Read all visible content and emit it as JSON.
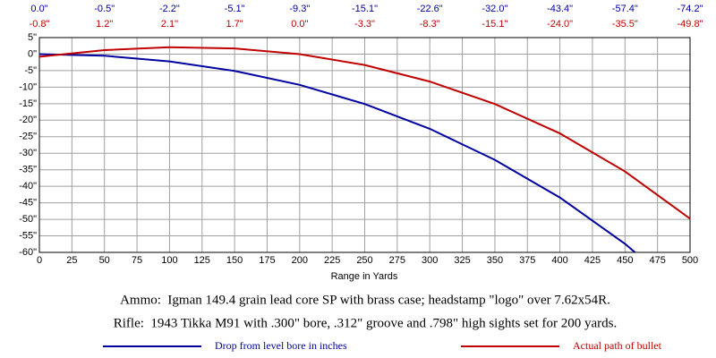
{
  "chart_data": {
    "type": "line",
    "x_label": "Range in Yards",
    "annotations": [
      "Ammo:  Igman 149.4 grain lead core SP with brass case; headstamp \"logo\" over 7.62x54R.",
      "Rifle:  1943 Tikka M91 with .300\" bore, .312\" groove and .798\" high sights set for 200 yards."
    ],
    "x": [
      0,
      50,
      100,
      150,
      200,
      250,
      300,
      350,
      400,
      450,
      500
    ],
    "series": [
      {
        "name": "Drop from level bore in inches",
        "color": "#0000a0",
        "values": [
          0.0,
          -0.5,
          -2.2,
          -5.1,
          -9.3,
          -15.1,
          -22.6,
          -32.0,
          -43.4,
          -57.4,
          -74.2
        ],
        "value_labels": [
          "0.0\"",
          "-0.5\"",
          "-2.2\"",
          "-5.1\"",
          "-9.3\"",
          "-15.1\"",
          "-22.6\"",
          "-32.0\"",
          "-43.4\"",
          "-57.4\"",
          "-74.2\""
        ]
      },
      {
        "name": "Actual path of bullet",
        "color": "#c00000",
        "values": [
          -0.8,
          1.2,
          2.1,
          1.7,
          0.0,
          -3.3,
          -8.3,
          -15.1,
          -24.0,
          -35.5,
          -49.8
        ],
        "value_labels": [
          "-0.8\"",
          "1.2\"",
          "2.1\"",
          "1.7\"",
          "0.0\"",
          "-3.3\"",
          "-8.3\"",
          "-15.1\"",
          "-24.0\"",
          "-35.5\"",
          "-49.8\""
        ]
      }
    ],
    "xlim": [
      0,
      500
    ],
    "xticks": [
      0,
      25,
      50,
      75,
      100,
      125,
      150,
      175,
      200,
      225,
      250,
      275,
      300,
      325,
      350,
      375,
      400,
      425,
      450,
      475,
      500
    ],
    "ylim": [
      -60,
      5
    ],
    "yticks": [
      {
        "value": 5,
        "label": "5\""
      },
      {
        "value": 0,
        "label": "0\""
      },
      {
        "value": -5,
        "label": "-5\""
      },
      {
        "value": -10,
        "label": "-10\""
      },
      {
        "value": -15,
        "label": "-15\""
      },
      {
        "value": -20,
        "label": "-20\""
      },
      {
        "value": -25,
        "label": "-25\""
      },
      {
        "value": -30,
        "label": "-30\""
      },
      {
        "value": -35,
        "label": "-35\""
      },
      {
        "value": -40,
        "label": "-40\""
      },
      {
        "value": -45,
        "label": "-45\""
      },
      {
        "value": -50,
        "label": "-50\""
      },
      {
        "value": -55,
        "label": "-55\""
      },
      {
        "value": -60,
        "label": "-60\""
      }
    ],
    "grid": true,
    "legend": "bottom"
  }
}
